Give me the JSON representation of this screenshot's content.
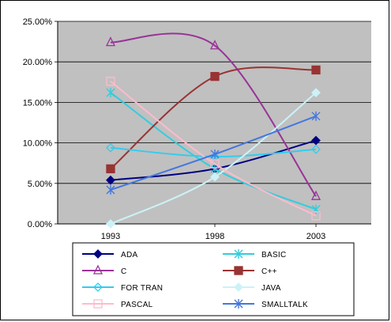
{
  "chart_data": {
    "type": "line",
    "title": "",
    "xlabel": "",
    "ylabel": "",
    "x": [
      "1993",
      "1998",
      "2003"
    ],
    "yticks": [
      "0.00%",
      "5.00%",
      "10.00%",
      "15.00%",
      "20.00%",
      "25.00%"
    ],
    "ylim": [
      0,
      25
    ],
    "plot_background": "#c0c0c0",
    "grid": "horizontal",
    "legend_position": "bottom",
    "series": [
      {
        "name": "ADA",
        "values": [
          5.4,
          6.8,
          10.3
        ],
        "color": "#000080",
        "marker": "diamond",
        "fill": true
      },
      {
        "name": "BASIC",
        "values": [
          16.2,
          6.8,
          1.8
        ],
        "color": "#33ccdd",
        "marker": "asterisk",
        "fill": false
      },
      {
        "name": "C",
        "values": [
          22.4,
          22.0,
          3.4
        ],
        "color": "#993399",
        "marker": "triangle",
        "fill": false
      },
      {
        "name": "C++",
        "values": [
          6.8,
          18.2,
          19.0
        ],
        "color": "#993333",
        "marker": "square",
        "fill": true
      },
      {
        "name": "FOR TRAN",
        "values": [
          9.4,
          8.3,
          9.2
        ],
        "color": "#33ccee",
        "marker": "diamond",
        "fill": false
      },
      {
        "name": "JAVA",
        "values": [
          0.0,
          5.8,
          16.2
        ],
        "color": "#ccf2f8",
        "marker": "diamond",
        "fill": true
      },
      {
        "name": "PASCAL",
        "values": [
          17.6,
          7.4,
          1.0
        ],
        "color": "#ffbbcc",
        "marker": "square",
        "fill": false
      },
      {
        "name": "SMALLTALK",
        "values": [
          4.2,
          8.6,
          13.3
        ],
        "color": "#4477dd",
        "marker": "asterisk",
        "fill": false
      }
    ]
  }
}
